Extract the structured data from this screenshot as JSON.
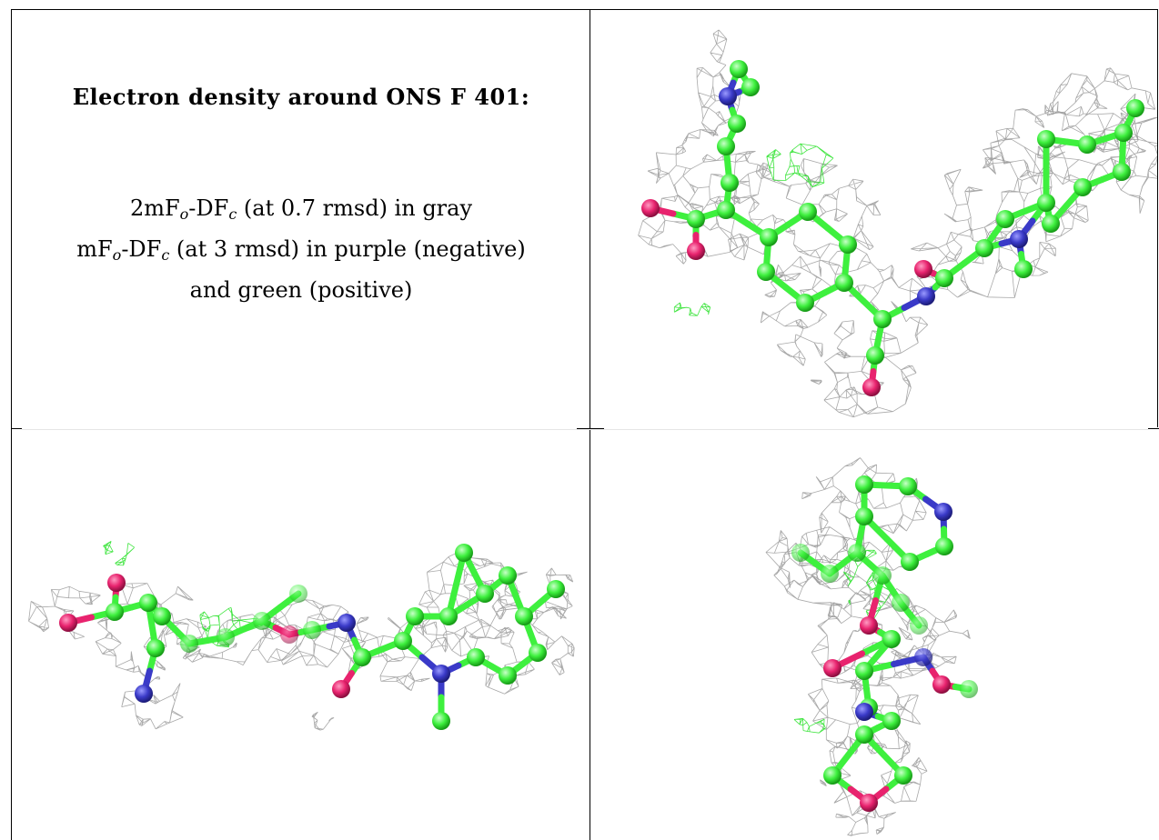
{
  "caption": {
    "title": "Electron density around ONS F 401:",
    "line1": {
      "pre": "2mF",
      "sub1": "o",
      "mid": "-DF",
      "sub2": "c",
      "post": " (at 0.7 rmsd) in gray"
    },
    "line2": {
      "pre": "mF",
      "sub1": "o",
      "mid": "-DF",
      "sub2": "c",
      "post": " (at 3 rmsd) in purple (negative)"
    },
    "line3": "and green (positive)"
  },
  "colors": {
    "carbon": "#3ef03e",
    "nitrogen": "#3a3ac8",
    "oxygen": "#e8236e",
    "mesh_2fofc": "#9a9a9a",
    "mesh_fofc_pos": "#22e022",
    "border": "#000000"
  },
  "views": [
    {
      "name": "view-top-right"
    },
    {
      "name": "view-bottom-left"
    },
    {
      "name": "view-bottom-right"
    }
  ]
}
